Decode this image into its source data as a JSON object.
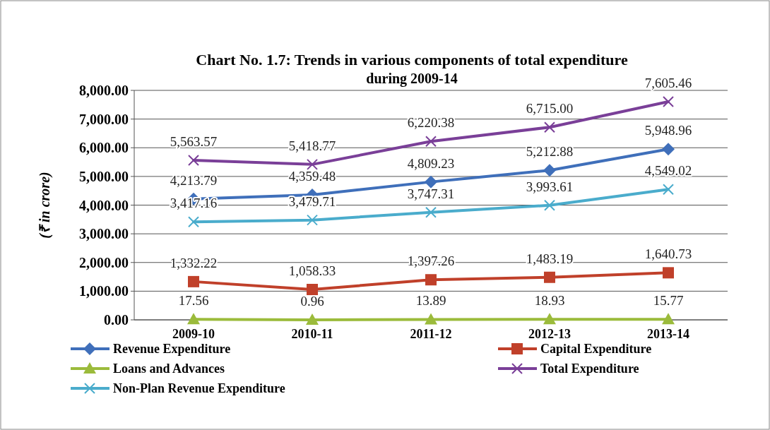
{
  "chart_data": {
    "type": "line",
    "title": "Chart No. 1.7: Trends in various components of total expenditure during 2009-14",
    "ylabel": "(₹ in crore)",
    "categories": [
      "2009-10",
      "2010-11",
      "2011-12",
      "2012-13",
      "2013-14"
    ],
    "ylim": [
      0,
      8000
    ],
    "yticks": [
      {
        "value": 0,
        "label": "0.00"
      },
      {
        "value": 1000,
        "label": "1,000.00"
      },
      {
        "value": 2000,
        "label": "2,000.00"
      },
      {
        "value": 3000,
        "label": "3,000.00"
      },
      {
        "value": 4000,
        "label": "4,000.00"
      },
      {
        "value": 5000,
        "label": "5,000.00"
      },
      {
        "value": 6000,
        "label": "6,000.00"
      },
      {
        "value": 7000,
        "label": "7,000.00"
      },
      {
        "value": 8000,
        "label": "8,000.00"
      }
    ],
    "grid": "y",
    "legend": "bottom",
    "series": [
      {
        "name": "Revenue Expenditure",
        "color": "#3f6fba",
        "marker": "diamond",
        "values": [
          4213.79,
          4359.48,
          4809.23,
          5212.88,
          5948.96
        ],
        "value_labels": [
          "4,213.79",
          "4,359.48",
          "4,809.23",
          "5,212.88",
          "5,948.96"
        ]
      },
      {
        "name": "Capital Expenditure",
        "color": "#c0402a",
        "marker": "square",
        "values": [
          1332.22,
          1058.33,
          1397.26,
          1483.19,
          1640.73
        ],
        "value_labels": [
          "1,332.22",
          "1,058.33",
          "1,397.26",
          "1,483.19",
          "1,640.73"
        ]
      },
      {
        "name": "Loans and Advances",
        "color": "#9bbb3b",
        "marker": "triangle",
        "values": [
          17.56,
          0.96,
          13.89,
          18.93,
          15.77
        ],
        "value_labels": [
          "17.56",
          "0.96",
          "13.89",
          "18.93",
          "15.77"
        ]
      },
      {
        "name": "Total Expenditure",
        "color": "#7a3f98",
        "marker": "cross",
        "values": [
          5563.57,
          5418.77,
          6220.38,
          6715.0,
          7605.46
        ],
        "value_labels": [
          "5,563.57",
          "5,418.77",
          "6,220.38",
          "6,715.00",
          "7,605.46"
        ]
      },
      {
        "name": "Non-Plan Revenue Expenditure",
        "color": "#4aaccc",
        "marker": "cross",
        "values": [
          3417.16,
          3479.71,
          3747.31,
          3993.61,
          4549.02
        ],
        "value_labels": [
          "3,417.16",
          "3,479.71",
          "3,747.31",
          "3,993.61",
          "4,549.02"
        ]
      }
    ]
  }
}
